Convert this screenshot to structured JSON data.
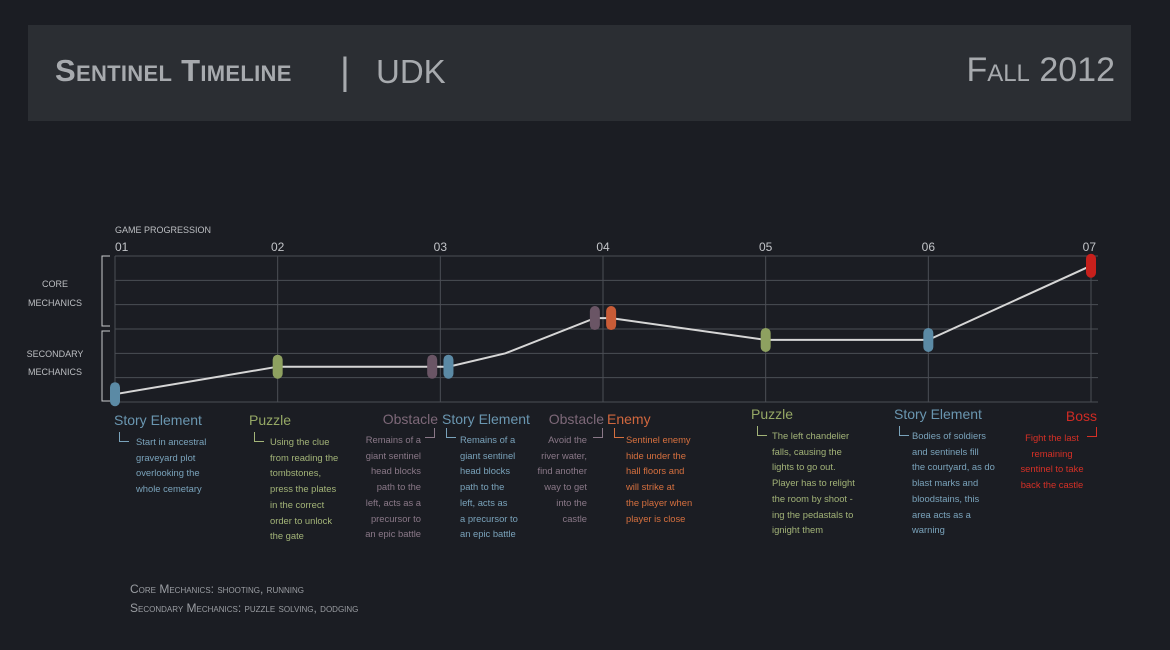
{
  "header": {
    "title": "Sentinel Timeline",
    "divider": "|",
    "subtitle": "UDK",
    "term": "Fall 2012"
  },
  "axes": {
    "progression_label": "GAME PROGRESSION",
    "core_label_1": "CORE",
    "core_label_2": "MECHANICS",
    "secondary_label_1": "SECONDARY",
    "secondary_label_2": "MECHANICS",
    "stage_numbers": [
      "01",
      "02",
      "03",
      "04",
      "05",
      "06",
      "07"
    ]
  },
  "colors": {
    "story": "#5b8aa5",
    "puzzle": "#8ea160",
    "obstacle": "#6a5565",
    "enemy": "#c85c37",
    "boss": "#c7201c",
    "line": "#d6d6d6",
    "grid": "#4b4e55"
  },
  "chart_data": {
    "type": "line",
    "x": [
      1,
      2,
      2.95,
      3.05,
      3.4,
      3.95,
      4.05,
      5,
      6,
      7
    ],
    "y": [
      0.32,
      1.45,
      1.45,
      1.45,
      2,
      3.45,
      3.45,
      2.55,
      2.55,
      5.6
    ],
    "markers": [
      {
        "x": 1,
        "y": 0.32,
        "type": "story"
      },
      {
        "x": 2,
        "y": 1.45,
        "type": "puzzle"
      },
      {
        "x": 2.95,
        "y": 1.45,
        "type": "obstacle"
      },
      {
        "x": 3.05,
        "y": 1.45,
        "type": "story"
      },
      {
        "x": 3.95,
        "y": 3.45,
        "type": "obstacle"
      },
      {
        "x": 4.05,
        "y": 3.45,
        "type": "enemy"
      },
      {
        "x": 5,
        "y": 2.55,
        "type": "puzzle"
      },
      {
        "x": 6,
        "y": 2.55,
        "type": "story"
      },
      {
        "x": 7,
        "y": 5.6,
        "type": "boss"
      }
    ],
    "xlabel": "GAME PROGRESSION",
    "xlim": [
      1,
      7
    ],
    "ylim": [
      0,
      6
    ],
    "grid": true
  },
  "events": [
    {
      "label": "Story Element",
      "desc": [
        "Start in ancestral",
        "graveyard plot",
        "overlooking the",
        "whole cemetary"
      ]
    },
    {
      "label": "Puzzle",
      "desc": [
        "Using the clue",
        "from reading the",
        "tombstones,",
        "press the plates",
        "in the correct",
        "order to unlock",
        "the gate"
      ]
    },
    {
      "label": "Obstacle",
      "desc": [
        "Remains of a",
        "giant sentinel",
        "head blocks",
        "path to the",
        "left, acts as a",
        "precursor to",
        "an epic battle"
      ]
    },
    {
      "label": "Story Element",
      "desc": [
        "Remains of a",
        "giant sentinel",
        "head blocks",
        "path to the",
        "left, acts as",
        "a precursor to",
        "an epic battle"
      ]
    },
    {
      "label": "Obstacle",
      "desc": [
        "Avoid the",
        "river water,",
        "find another",
        "way to get",
        "into the",
        "castle"
      ]
    },
    {
      "label": "Enemy",
      "desc": [
        "Sentinel enemy",
        "hide under the",
        "hall floors and",
        "will strike at",
        "the player when",
        "player is close"
      ]
    },
    {
      "label": "Puzzle",
      "desc": [
        "The left chandelier",
        "falls, causing the",
        "lights to go out.",
        "Player has to relight",
        "the room by shoot -",
        "ing the pedastals to",
        "ignight them"
      ]
    },
    {
      "label": "Story Element",
      "desc": [
        "Bodies of soldiers",
        "and sentinels fill",
        "the courtyard, as do",
        "blast marks and",
        "bloodstains, this",
        "area acts as a",
        "warning"
      ]
    },
    {
      "label": "Boss",
      "desc": [
        "Fight the last",
        "remaining",
        "sentinel to take",
        "back the castle"
      ]
    }
  ],
  "footer": {
    "core": "Core Mechanics: shooting, running",
    "secondary": "Secondary Mechanics: puzzle solving, dodging"
  }
}
